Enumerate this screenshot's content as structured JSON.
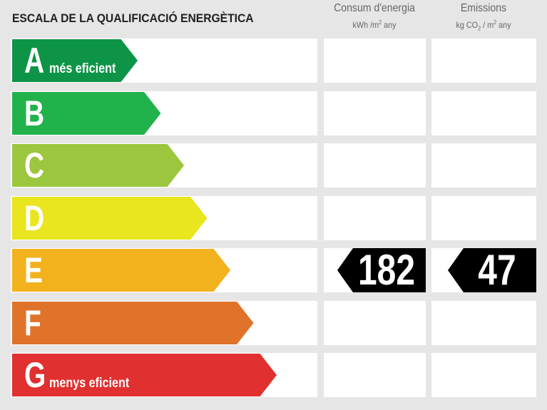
{
  "title": "ESCALA DE LA QUALIFICACIÓ ENERGÈTICA",
  "columns": {
    "consum": {
      "heading": "Consum d'energia",
      "unit_prefix": "kWh /m",
      "unit_sup": "2",
      "unit_suffix": " any"
    },
    "emissions": {
      "heading": "Emissions",
      "unit_prefix": "kg CO",
      "unit_sub": "2",
      "unit_mid": " / m",
      "unit_sup": "2",
      "unit_suffix": " any"
    }
  },
  "chart_data": {
    "type": "table",
    "title": "ESCALA DE LA QUALIFICACIÓ ENERGÈTICA",
    "classes": [
      {
        "letter": "A",
        "label": "més eficient",
        "color": "#0e9447"
      },
      {
        "letter": "B",
        "label": "",
        "color": "#22b24c"
      },
      {
        "letter": "C",
        "label": "",
        "color": "#9cc63d"
      },
      {
        "letter": "D",
        "label": "",
        "color": "#e9e51e"
      },
      {
        "letter": "E",
        "label": "",
        "color": "#f2b21d"
      },
      {
        "letter": "F",
        "label": "",
        "color": "#e0732a"
      },
      {
        "letter": "G",
        "label": "menys eficient",
        "color": "#e0302f"
      }
    ],
    "rating": {
      "class": "E",
      "consum": "182",
      "emissions": "47"
    }
  }
}
